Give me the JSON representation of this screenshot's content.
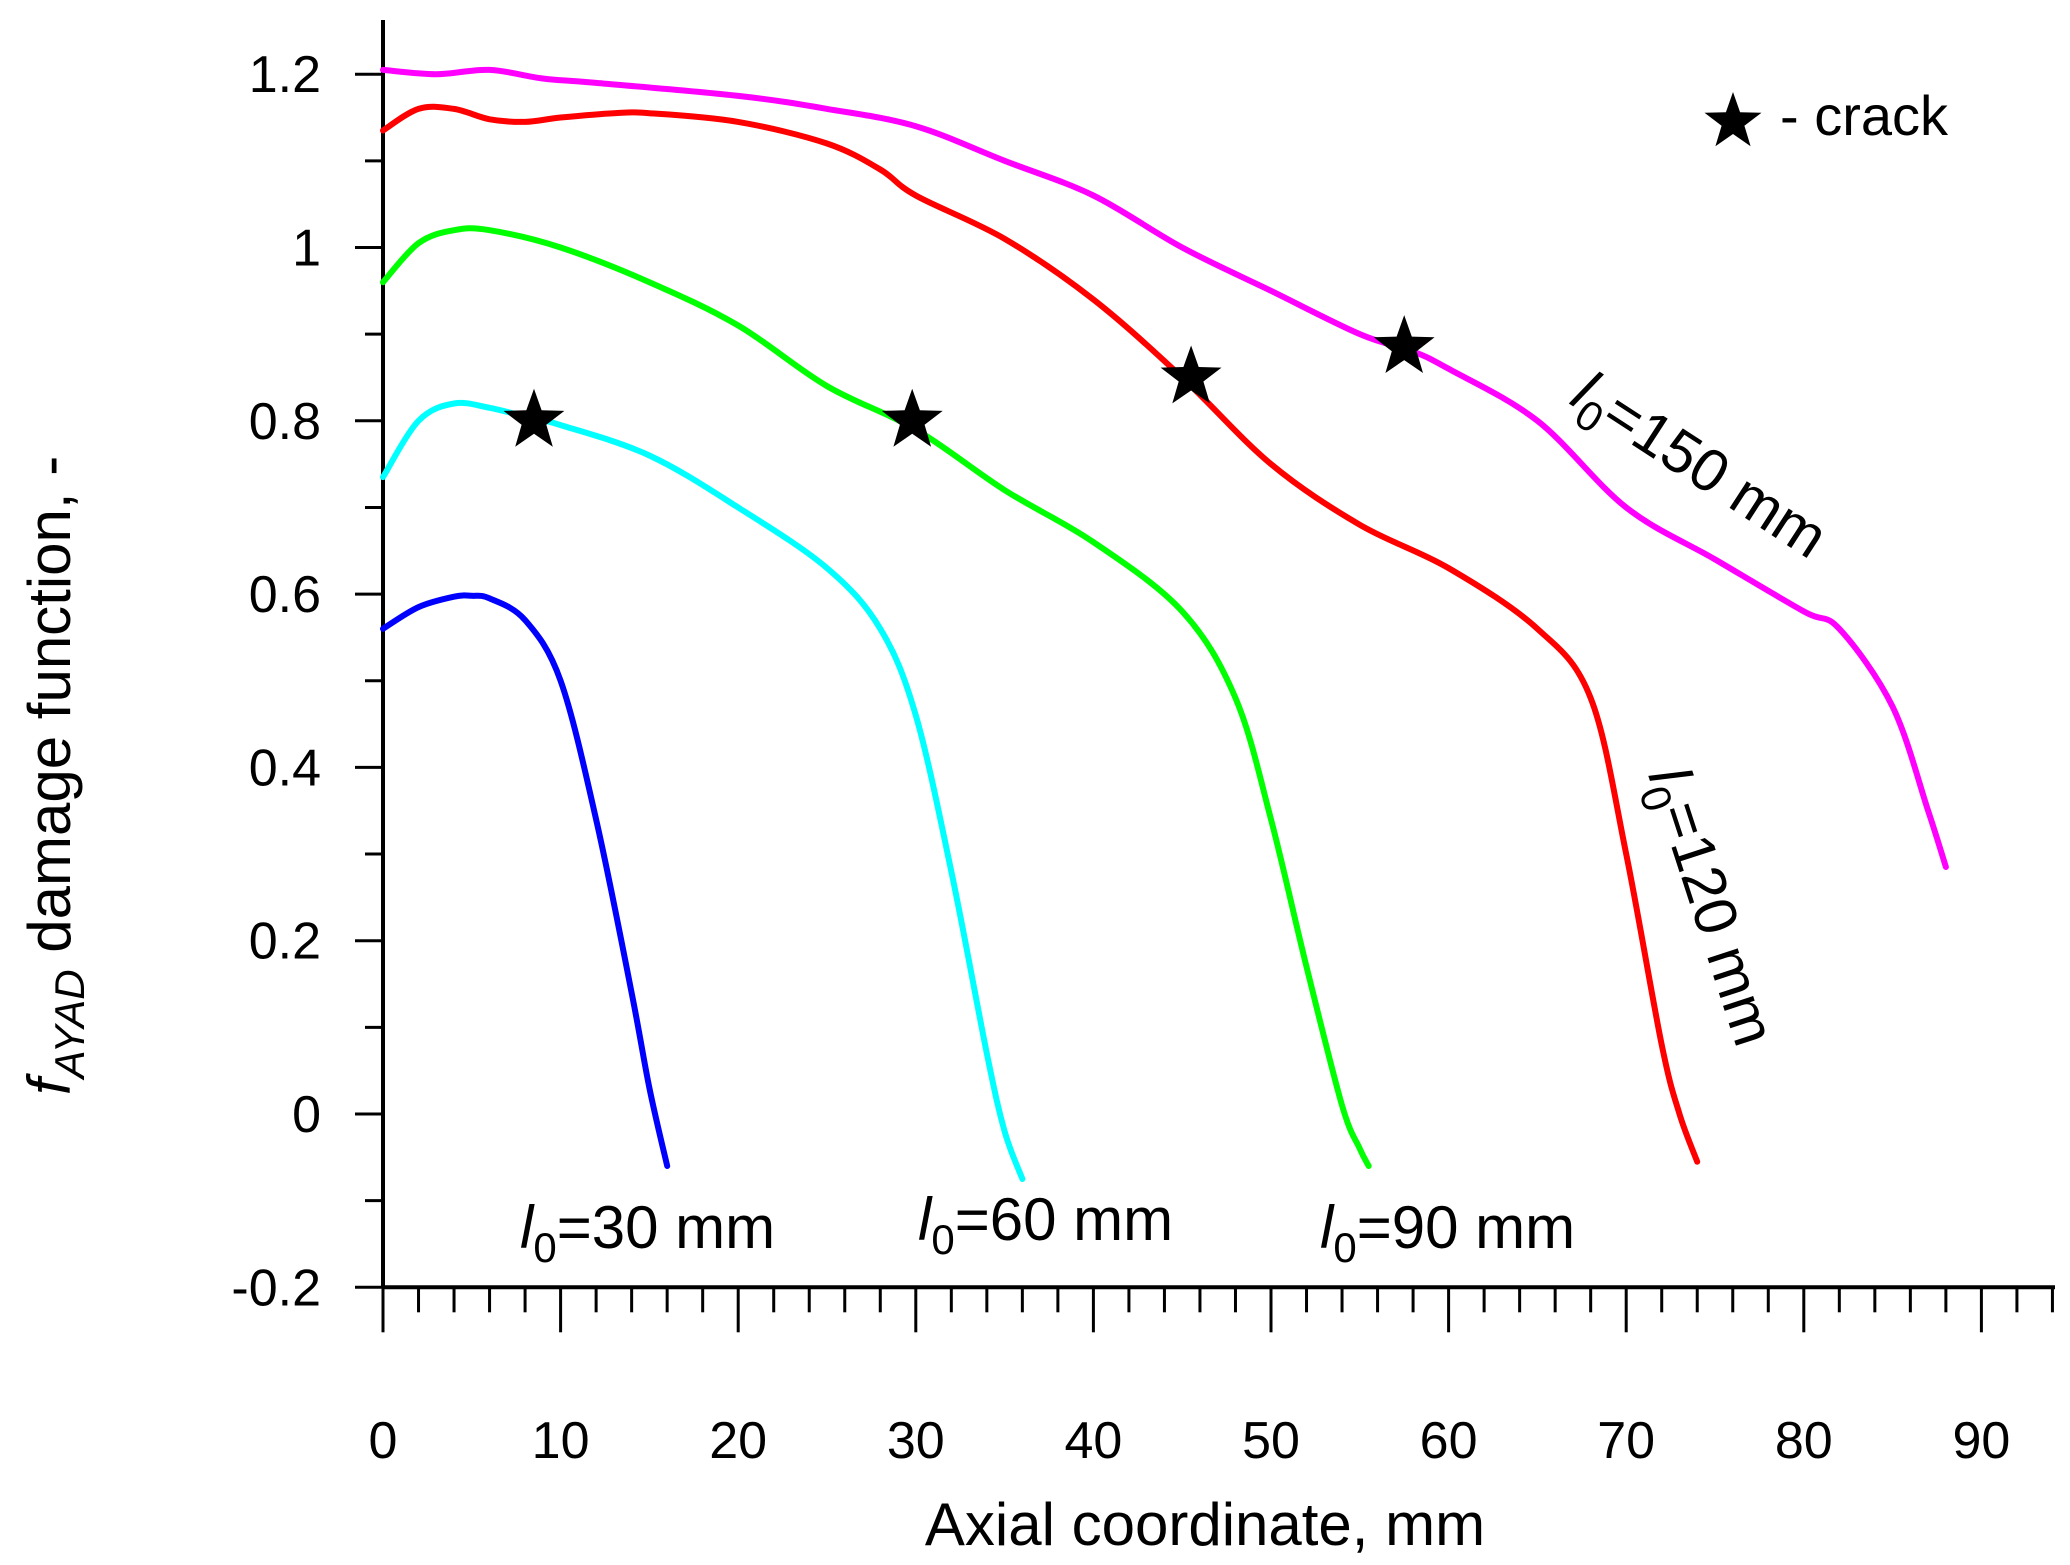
{
  "chart_data": {
    "type": "line",
    "title": "",
    "xlabel": "Axial coordinate, mm",
    "ylabel": {
      "main": "f",
      "subscript": "AYAD",
      "rest": " damage function, -"
    },
    "xlim": [
      0,
      94
    ],
    "ylim": [
      -0.2,
      1.25
    ],
    "xticks": [
      0,
      10,
      20,
      30,
      40,
      50,
      60,
      70,
      80,
      90
    ],
    "xtick_labels": [
      "0",
      "10",
      "20",
      "30",
      "40",
      "50",
      "60",
      "70",
      "80",
      "90"
    ],
    "yticks": [
      -0.2,
      0,
      0.2,
      0.4,
      0.6,
      0.8,
      1.0,
      1.2
    ],
    "ytick_labels": [
      "-0.2",
      "0",
      "0.2",
      "0.4",
      "0.6",
      "0.8",
      "1",
      "1.2"
    ],
    "grid": false,
    "legend": {
      "symbol": "star",
      "text": "- crack",
      "position": "top-right"
    },
    "series": [
      {
        "name": "l0=30 mm",
        "label": {
          "l": "l",
          "sub": "0",
          "rest": "=30 mm"
        },
        "color": "#0000ff",
        "x": [
          0,
          2,
          4,
          5,
          6,
          8,
          10,
          12,
          14,
          15,
          16
        ],
        "y": [
          0.56,
          0.585,
          0.597,
          0.598,
          0.595,
          0.57,
          0.5,
          0.34,
          0.14,
          0.03,
          -0.06
        ]
      },
      {
        "name": "l0=60 mm",
        "label": {
          "l": "l",
          "sub": "0",
          "rest": "=60 mm"
        },
        "color": "#00ffff",
        "x": [
          0,
          2,
          4,
          6,
          8,
          10,
          15,
          20,
          25,
          28,
          30,
          32,
          34,
          35,
          36
        ],
        "y": [
          0.735,
          0.8,
          0.82,
          0.815,
          0.805,
          0.795,
          0.76,
          0.7,
          0.63,
          0.56,
          0.46,
          0.28,
          0.07,
          -0.02,
          -0.075
        ]
      },
      {
        "name": "l0=90 mm",
        "label": {
          "l": "l",
          "sub": "0",
          "rest": "=90 mm"
        },
        "color": "#00ff00",
        "x": [
          0,
          2,
          4,
          6,
          10,
          15,
          20,
          25,
          30,
          35,
          40,
          45,
          48,
          50,
          52,
          54,
          55,
          55.5
        ],
        "y": [
          0.96,
          1.005,
          1.02,
          1.02,
          1.0,
          0.96,
          0.91,
          0.84,
          0.79,
          0.72,
          0.66,
          0.58,
          0.48,
          0.34,
          0.17,
          0.01,
          -0.04,
          -0.06
        ]
      },
      {
        "name": "l0=120 mm",
        "label": {
          "l": "l",
          "sub": "0",
          "rest": "=120 mm"
        },
        "color": "#ff0000",
        "x": [
          0,
          2,
          4,
          6,
          8,
          10,
          13,
          15,
          20,
          25,
          28,
          30,
          35,
          40,
          45,
          50,
          55,
          60,
          65,
          68,
          70,
          72,
          73,
          74
        ],
        "y": [
          1.135,
          1.16,
          1.16,
          1.148,
          1.145,
          1.15,
          1.155,
          1.155,
          1.145,
          1.12,
          1.09,
          1.06,
          1.01,
          0.94,
          0.85,
          0.75,
          0.68,
          0.63,
          0.56,
          0.48,
          0.3,
          0.08,
          0.0,
          -0.055
        ]
      },
      {
        "name": "l0=150 mm",
        "label": {
          "l": "l",
          "sub": "0",
          "rest": "=150 mm"
        },
        "color": "#ff00ff",
        "x": [
          0,
          3,
          6,
          9,
          12,
          20,
          25,
          30,
          35,
          40,
          45,
          50,
          55,
          58,
          60,
          65,
          70,
          75,
          80,
          82,
          85,
          87,
          88
        ],
        "y": [
          1.205,
          1.2,
          1.205,
          1.195,
          1.19,
          1.175,
          1.16,
          1.14,
          1.1,
          1.06,
          1.0,
          0.95,
          0.9,
          0.88,
          0.86,
          0.8,
          0.7,
          0.64,
          0.58,
          0.56,
          0.47,
          0.35,
          0.285
        ]
      }
    ],
    "crack_points": [
      {
        "x": 8.5,
        "y": 0.8
      },
      {
        "x": 29.8,
        "y": 0.8
      },
      {
        "x": 45.5,
        "y": 0.85
      },
      {
        "x": 57.5,
        "y": 0.885
      }
    ]
  }
}
